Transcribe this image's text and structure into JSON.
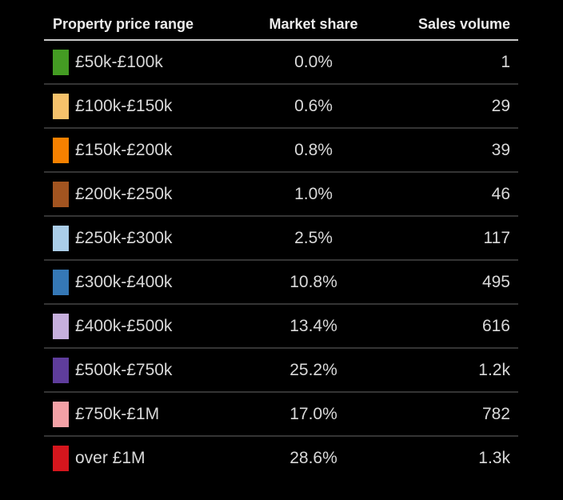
{
  "table": {
    "headers": {
      "range": "Property price range",
      "share": "Market share",
      "volume": "Sales volume"
    },
    "rows": [
      {
        "label": "£50k-£100k",
        "share": "0.0%",
        "volume": "1",
        "color": "#449c23",
        "color_name": "green"
      },
      {
        "label": "£100k-£150k",
        "share": "0.6%",
        "volume": "29",
        "color": "#f6c26b",
        "color_name": "light-tan"
      },
      {
        "label": "£150k-£200k",
        "share": "0.8%",
        "volume": "39",
        "color": "#f68100",
        "color_name": "orange"
      },
      {
        "label": "£200k-£250k",
        "share": "1.0%",
        "volume": "46",
        "color": "#a25420",
        "color_name": "brown"
      },
      {
        "label": "£250k-£300k",
        "share": "2.5%",
        "volume": "117",
        "color": "#aacde8",
        "color_name": "light-blue"
      },
      {
        "label": "£300k-£400k",
        "share": "10.8%",
        "volume": "495",
        "color": "#3578b6",
        "color_name": "blue"
      },
      {
        "label": "£400k-£500k",
        "share": "13.4%",
        "volume": "616",
        "color": "#c6afdd",
        "color_name": "lavender"
      },
      {
        "label": "£500k-£750k",
        "share": "25.2%",
        "volume": "1.2k",
        "color": "#5f3d9c",
        "color_name": "purple"
      },
      {
        "label": "£750k-£1M",
        "share": "17.0%",
        "volume": "782",
        "color": "#f3a1a6",
        "color_name": "pink"
      },
      {
        "label": "over £1M",
        "share": "28.6%",
        "volume": "1.3k",
        "color": "#d5161d",
        "color_name": "red"
      }
    ]
  },
  "colors": {
    "background": "#000000",
    "header_text": "#ececec",
    "cell_text": "#d9d9d9",
    "header_divider": "#c9c9c9",
    "row_divider": "#343434"
  },
  "chart_data": {
    "type": "table",
    "title": "",
    "columns": [
      "Property price range",
      "Market share",
      "Sales volume"
    ],
    "categories": [
      "£50k-£100k",
      "£100k-£150k",
      "£150k-£200k",
      "£200k-£250k",
      "£250k-£300k",
      "£300k-£400k",
      "£400k-£500k",
      "£500k-£750k",
      "£750k-£1M",
      "over £1M"
    ],
    "market_share_pct": [
      0.0,
      0.6,
      0.8,
      1.0,
      2.5,
      10.8,
      13.4,
      25.2,
      17.0,
      28.6
    ],
    "sales_volume_display": [
      "1",
      "29",
      "39",
      "46",
      "117",
      "495",
      "616",
      "1.2k",
      "782",
      "1.3k"
    ],
    "sales_volume_approx": [
      1,
      29,
      39,
      46,
      117,
      495,
      616,
      1200,
      782,
      1300
    ],
    "category_colors": [
      "#449c23",
      "#f6c26b",
      "#f68100",
      "#a25420",
      "#aacde8",
      "#3578b6",
      "#c6afdd",
      "#5f3d9c",
      "#f3a1a6",
      "#d5161d"
    ],
    "layout_hints": {
      "background": "black",
      "header_divider": "light",
      "row_dividers": "dark-gray",
      "share_alignment": "center",
      "volume_alignment": "right"
    }
  }
}
